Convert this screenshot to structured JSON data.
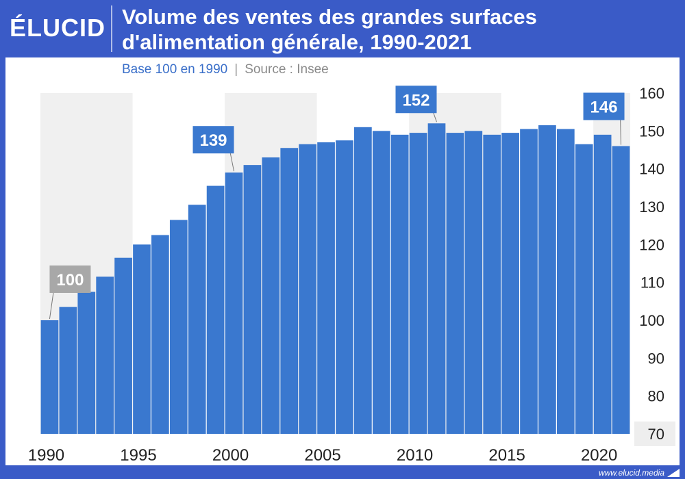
{
  "header": {
    "logo": "ÉLUCID",
    "title_line1": "Volume des ventes des grandes surfaces",
    "title_line2": "d'alimentation générale, 1990-2021"
  },
  "subtitle": {
    "base": "Base 100 en 1990",
    "separator": "|",
    "source": "Source : Insee"
  },
  "footer": {
    "site": "www.elucid.media"
  },
  "colors": {
    "bar": "#3a78cf",
    "first_label": "#a8a8a8",
    "band": "#f0f0f0",
    "header": "#3a5bc7"
  },
  "chart_data": {
    "type": "bar",
    "title": "Volume des ventes des grandes surfaces d'alimentation générale, 1990-2021",
    "x": [
      1990,
      1991,
      1992,
      1993,
      1994,
      1995,
      1996,
      1997,
      1998,
      1999,
      2000,
      2001,
      2002,
      2003,
      2004,
      2005,
      2006,
      2007,
      2008,
      2009,
      2010,
      2011,
      2012,
      2013,
      2014,
      2015,
      2016,
      2017,
      2018,
      2019,
      2020,
      2021
    ],
    "values": [
      100,
      103.5,
      107.5,
      111.5,
      116.5,
      120,
      122.5,
      126.5,
      130.5,
      135.5,
      139,
      141,
      143,
      145.5,
      146.5,
      147,
      147.5,
      151,
      150,
      149,
      149.5,
      152,
      149.5,
      150,
      149,
      149.5,
      150.5,
      151.5,
      150.5,
      146.5,
      149,
      146
    ],
    "ylim": [
      70,
      160
    ],
    "yticks": [
      70,
      80,
      90,
      100,
      110,
      120,
      130,
      140,
      150,
      160
    ],
    "xticks": [
      1990,
      1995,
      2000,
      2005,
      2010,
      2015,
      2020
    ],
    "annotations": [
      {
        "year": 1990,
        "label": "100",
        "style": "gray"
      },
      {
        "year": 2000,
        "label": "139",
        "style": "blue"
      },
      {
        "year": 2011,
        "label": "152",
        "style": "blue"
      },
      {
        "year": 2021,
        "label": "146",
        "style": "blue"
      }
    ],
    "grid": false,
    "xlabel": "",
    "ylabel": ""
  }
}
